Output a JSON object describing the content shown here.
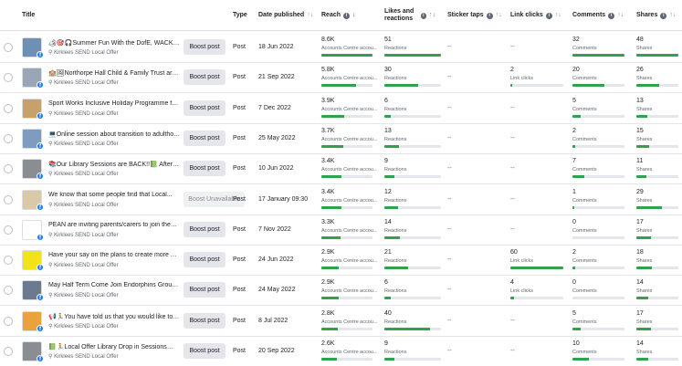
{
  "headers": {
    "title": "Title",
    "type": "Type",
    "date": "Date published",
    "reach": "Reach",
    "likes": "Likes and reactions",
    "sticker": "Sticker taps",
    "link": "Link clicks",
    "comments": "Comments",
    "shares": "Shares"
  },
  "page_name": "Kirklees SEND Local Offer",
  "colors": {
    "bar_fill": "#31a24c",
    "bar_track": "#e4e6eb",
    "facebook": "#1877f2"
  },
  "rows": [
    {
      "title": "🏕🎯🎧Summer Fun With the DofE, WACKY Fo...",
      "thumb": "#6f8fb3",
      "boost": "Boost post",
      "boost_disabled": false,
      "type": "Post",
      "date": "18 Jun 2022",
      "reach": "8.6K",
      "reach_sub": "Accounts Centre accou...",
      "reach_fill": 1.0,
      "likes": "51",
      "likes_fill": 1.0,
      "sticker": "--",
      "link": "--",
      "link_sub": "",
      "link_fill": 0,
      "comments": "32",
      "comments_fill": 1.0,
      "comments_orange": false,
      "shares": "48",
      "shares_fill": 1.0
    },
    {
      "title": "🏫🖼Northorpe Hall Child & Family Trust are ho...",
      "thumb": "#9aa6b5",
      "boost": "Boost post",
      "boost_disabled": false,
      "type": "Post",
      "date": "21 Sep 2022",
      "reach": "5.8K",
      "reach_sub": "Accounts Centre accou...",
      "reach_fill": 0.67,
      "likes": "30",
      "likes_fill": 0.6,
      "sticker": "--",
      "link": "2",
      "link_sub": "Link clicks",
      "link_fill": 0.03,
      "comments": "20",
      "comments_fill": 0.62,
      "comments_orange": false,
      "shares": "26",
      "shares_fill": 0.54
    },
    {
      "title": "Sport Works Inclusive Holiday Programme for wi...",
      "thumb": "#c7a16b",
      "boost": "Boost post",
      "boost_disabled": false,
      "type": "Post",
      "date": "7 Dec 2022",
      "reach": "3.9K",
      "reach_sub": "Accounts Centre accou...",
      "reach_fill": 0.45,
      "likes": "6",
      "likes_fill": 0.12,
      "sticker": "--",
      "link": "--",
      "link_sub": "",
      "link_fill": 0,
      "comments": "5",
      "comments_fill": 0.15,
      "comments_orange": false,
      "shares": "13",
      "shares_fill": 0.27
    },
    {
      "title": "💻Online session about transition to adulthood,...",
      "thumb": "#7d9cc0",
      "boost": "Boost post",
      "boost_disabled": false,
      "type": "Post",
      "date": "25 May 2022",
      "reach": "3.7K",
      "reach_sub": "Accounts Centre accou...",
      "reach_fill": 0.43,
      "likes": "13",
      "likes_fill": 0.26,
      "sticker": "--",
      "link": "--",
      "link_sub": "",
      "link_fill": 0,
      "comments": "2",
      "comments_fill": 0.06,
      "comments_orange": false,
      "shares": "15",
      "shares_fill": 0.31
    },
    {
      "title": "📚Our Library Sessions are BACK!!📗 After such...",
      "thumb": "#8a8d91",
      "boost": "Boost post",
      "boost_disabled": false,
      "type": "Post",
      "date": "10 Jun 2022",
      "reach": "3.4K",
      "reach_sub": "Accounts Centre accou...",
      "reach_fill": 0.4,
      "likes": "9",
      "likes_fill": 0.18,
      "sticker": "--",
      "link": "--",
      "link_sub": "",
      "link_fill": 0,
      "comments": "7",
      "comments_fill": 0.22,
      "comments_orange": false,
      "shares": "11",
      "shares_fill": 0.23
    },
    {
      "title": "We know that some people find that Local...",
      "thumb": "#d9c9a8",
      "boost": "Boost Unavailable",
      "boost_disabled": true,
      "type": "Post",
      "date": "17 January 09:30",
      "reach": "3.4K",
      "reach_sub": "Accounts Centre accou...",
      "reach_fill": 0.4,
      "likes": "12",
      "likes_fill": 0.24,
      "sticker": "--",
      "link": "--",
      "link_sub": "",
      "link_fill": 0,
      "comments": "1",
      "comments_fill": 0.03,
      "comments_orange": false,
      "shares": "29",
      "shares_fill": 0.6
    },
    {
      "title": "PEAN are inviting parents/carers to join them for...",
      "thumb": "#ffffff",
      "boost": "Boost post",
      "boost_disabled": false,
      "type": "Post",
      "date": "7 Nov 2022",
      "reach": "3.3K",
      "reach_sub": "Accounts Centre accou...",
      "reach_fill": 0.38,
      "likes": "14",
      "likes_fill": 0.28,
      "sticker": "--",
      "link": "--",
      "link_sub": "",
      "link_fill": 0,
      "comments": "0",
      "comments_fill": 0,
      "comments_orange": false,
      "shares": "17",
      "shares_fill": 0.35
    },
    {
      "title": "Have your say on the plans to create more Additi...",
      "thumb": "#f2e318",
      "boost": "Boost post",
      "boost_disabled": false,
      "type": "Post",
      "date": "24 Jun 2022",
      "reach": "2.9K",
      "reach_sub": "Accounts Centre accou...",
      "reach_fill": 0.34,
      "likes": "21",
      "likes_fill": 0.42,
      "sticker": "--",
      "link": "60",
      "link_sub": "Link clicks",
      "link_fill": 1.0,
      "comments": "2",
      "comments_fill": 0.06,
      "comments_orange": false,
      "shares": "18",
      "shares_fill": 0.37
    },
    {
      "title": "May Half Term Come Join Endorphins Group for ...",
      "thumb": "#6b7a8f",
      "boost": "Boost post",
      "boost_disabled": false,
      "type": "Post",
      "date": "24 May 2022",
      "reach": "2.9K",
      "reach_sub": "Accounts Centre accou...",
      "reach_fill": 0.34,
      "likes": "6",
      "likes_fill": 0.12,
      "sticker": "--",
      "link": "4",
      "link_sub": "Link clicks",
      "link_fill": 0.07,
      "comments": "0",
      "comments_fill": 0,
      "comments_orange": false,
      "shares": "14",
      "shares_fill": 0.29
    },
    {
      "title": "📢🏃You have told us that you would like to b...",
      "thumb": "#e8a33d",
      "boost": "Boost post",
      "boost_disabled": false,
      "type": "Post",
      "date": "8 Jul 2022",
      "reach": "2.8K",
      "reach_sub": "Accounts Centre accou...",
      "reach_fill": 0.33,
      "likes": "40",
      "likes_fill": 0.8,
      "sticker": "--",
      "link": "--",
      "link_sub": "",
      "link_fill": 0,
      "comments": "5",
      "comments_fill": 0.15,
      "comments_orange": false,
      "shares": "17",
      "shares_fill": 0.35
    },
    {
      "title": "📗🏃Local Offer Library Drop in Sessions🏃📗 We...",
      "thumb": "#8a8d91",
      "boost": "Boost post",
      "boost_disabled": false,
      "type": "Post",
      "date": "20 Sep 2022",
      "reach": "2.6K",
      "reach_sub": "Accounts Centre accou...",
      "reach_fill": 0.3,
      "likes": "9",
      "likes_fill": 0.18,
      "sticker": "--",
      "link": "--",
      "link_sub": "",
      "link_fill": 0,
      "comments": "10",
      "comments_fill": 0.31,
      "comments_orange": true,
      "shares": "14",
      "shares_fill": 0.29
    }
  ]
}
